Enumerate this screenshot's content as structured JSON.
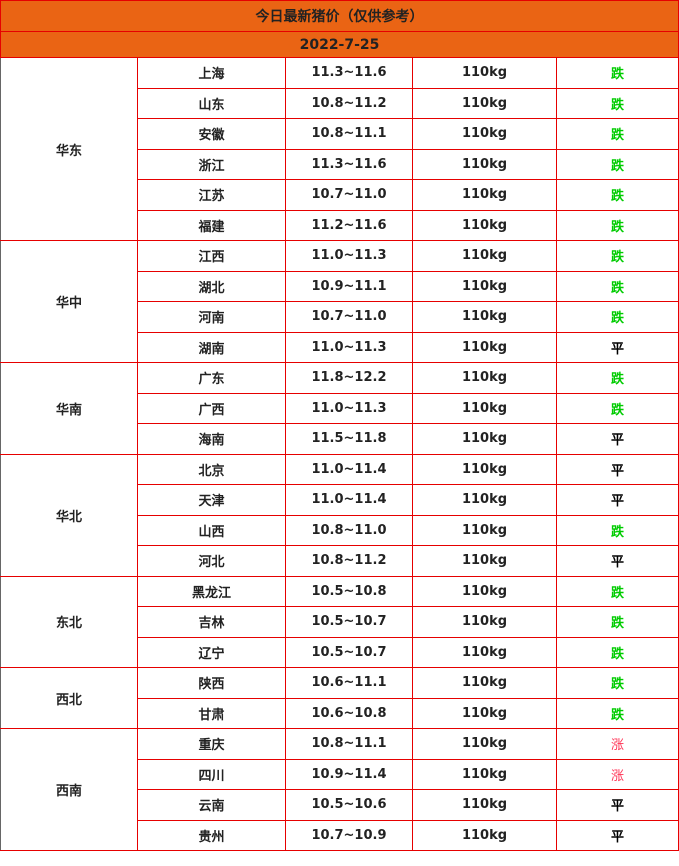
{
  "title": "今日最新猪价（仅供参考）",
  "date": "2022-7-25",
  "colors": {
    "header_bg": "#ea6414",
    "border": "#e60000",
    "down": "#00cc00",
    "up": "#ff3355",
    "flat": "#000000"
  },
  "regions": [
    {
      "name": "华东",
      "rows": [
        {
          "province": "上海",
          "price": "11.3~11.6",
          "weight": "110kg",
          "trend": "跌"
        },
        {
          "province": "山东",
          "price": "10.8~11.2",
          "weight": "110kg",
          "trend": "跌"
        },
        {
          "province": "安徽",
          "price": "10.8~11.1",
          "weight": "110kg",
          "trend": "跌"
        },
        {
          "province": "浙江",
          "price": "11.3~11.6",
          "weight": "110kg",
          "trend": "跌"
        },
        {
          "province": "江苏",
          "price": "10.7~11.0",
          "weight": "110kg",
          "trend": "跌"
        },
        {
          "province": "福建",
          "price": "11.2~11.6",
          "weight": "110kg",
          "trend": "跌"
        }
      ]
    },
    {
      "name": "华中",
      "rows": [
        {
          "province": "江西",
          "price": "11.0~11.3",
          "weight": "110kg",
          "trend": "跌"
        },
        {
          "province": "湖北",
          "price": "10.9~11.1",
          "weight": "110kg",
          "trend": "跌"
        },
        {
          "province": "河南",
          "price": "10.7~11.0",
          "weight": "110kg",
          "trend": "跌"
        },
        {
          "province": "湖南",
          "price": "11.0~11.3",
          "weight": "110kg",
          "trend": "平"
        }
      ]
    },
    {
      "name": "华南",
      "rows": [
        {
          "province": "广东",
          "price": "11.8~12.2",
          "weight": "110kg",
          "trend": "跌"
        },
        {
          "province": "广西",
          "price": "11.0~11.3",
          "weight": "110kg",
          "trend": "跌"
        },
        {
          "province": "海南",
          "price": "11.5~11.8",
          "weight": "110kg",
          "trend": "平"
        }
      ]
    },
    {
      "name": "华北",
      "rows": [
        {
          "province": "北京",
          "price": "11.0~11.4",
          "weight": "110kg",
          "trend": "平"
        },
        {
          "province": "天津",
          "price": "11.0~11.4",
          "weight": "110kg",
          "trend": "平"
        },
        {
          "province": "山西",
          "price": "10.8~11.0",
          "weight": "110kg",
          "trend": "跌"
        },
        {
          "province": "河北",
          "price": "10.8~11.2",
          "weight": "110kg",
          "trend": "平"
        }
      ]
    },
    {
      "name": "东北",
      "rows": [
        {
          "province": "黑龙江",
          "price": "10.5~10.8",
          "weight": "110kg",
          "trend": "跌"
        },
        {
          "province": "吉林",
          "price": "10.5~10.7",
          "weight": "110kg",
          "trend": "跌"
        },
        {
          "province": "辽宁",
          "price": "10.5~10.7",
          "weight": "110kg",
          "trend": "跌"
        }
      ]
    },
    {
      "name": "西北",
      "rows": [
        {
          "province": "陕西",
          "price": "10.6~11.1",
          "weight": "110kg",
          "trend": "跌"
        },
        {
          "province": "甘肃",
          "price": "10.6~10.8",
          "weight": "110kg",
          "trend": "跌"
        }
      ]
    },
    {
      "name": "西南",
      "rows": [
        {
          "province": "重庆",
          "price": "10.8~11.1",
          "weight": "110kg",
          "trend": "涨"
        },
        {
          "province": "四川",
          "price": "10.9~11.4",
          "weight": "110kg",
          "trend": "涨"
        },
        {
          "province": "云南",
          "price": "10.5~10.6",
          "weight": "110kg",
          "trend": "平"
        },
        {
          "province": "贵州",
          "price": "10.7~10.9",
          "weight": "110kg",
          "trend": "平"
        }
      ]
    }
  ]
}
